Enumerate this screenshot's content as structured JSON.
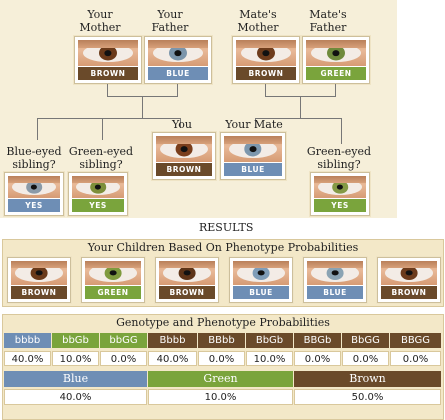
{
  "colors": {
    "brown": "#6a4a2a",
    "blue": "#6e8eb5",
    "green": "#7aa43c",
    "yes_blue": "#6e8eb5",
    "yes_green": "#7aa43c"
  },
  "parents": [
    {
      "label": "Your\nMother",
      "tag": "BROWN",
      "iris": "#6b3a1a"
    },
    {
      "label": "Your\nFather",
      "tag": "BLUE",
      "iris": "#7b95ab"
    },
    {
      "label": "Mate's\nMother",
      "tag": "BROWN",
      "iris": "#6e3c1c"
    },
    {
      "label": "Mate's\nFather",
      "tag": "GREEN",
      "iris": "#6f8a3c"
    }
  ],
  "you": {
    "label": "You",
    "tag": "BROWN",
    "iris": "#7a3e1c"
  },
  "mate": {
    "label": "Your Mate",
    "tag": "BLUE",
    "iris": "#7d97ad"
  },
  "siblings": {
    "blue": {
      "label": "Blue-eyed\nsibling?",
      "tag": "YES",
      "iris": "#8a9aa8"
    },
    "green": {
      "label": "Green-eyed\nsibling?",
      "tag": "YES",
      "iris": "#7d8f3a"
    },
    "mate_green": {
      "label": "Green-eyed\nsibling?",
      "tag": "YES",
      "iris": "#849a45"
    }
  },
  "results_label": "RESULTS",
  "children": {
    "title": "Your Children Based On Phenotype Probabilities",
    "items": [
      {
        "tag": "BROWN",
        "iris": "#6a3a1a"
      },
      {
        "tag": "GREEN",
        "iris": "#7f9a3e"
      },
      {
        "tag": "BROWN",
        "iris": "#5e3418"
      },
      {
        "tag": "BLUE",
        "iris": "#7f9db8"
      },
      {
        "tag": "BLUE",
        "iris": "#8aa3b3"
      },
      {
        "tag": "BROWN",
        "iris": "#6c3b1c"
      }
    ]
  },
  "genotype": {
    "title": "Genotype and Phenotype Probabilities",
    "headers": [
      "bbbb",
      "bbGb",
      "bbGG",
      "Bbbb",
      "BBbb",
      "BbGb",
      "BBGb",
      "BbGG",
      "BBGG"
    ],
    "values": [
      "40.0%",
      "10.0%",
      "0.0%",
      "40.0%",
      "0.0%",
      "10.0%",
      "0.0%",
      "0.0%",
      "0.0%"
    ],
    "phenotypes": [
      {
        "name": "Blue",
        "value": "40.0%"
      },
      {
        "name": "Green",
        "value": "10.0%"
      },
      {
        "name": "Brown",
        "value": "50.0%"
      }
    ]
  }
}
